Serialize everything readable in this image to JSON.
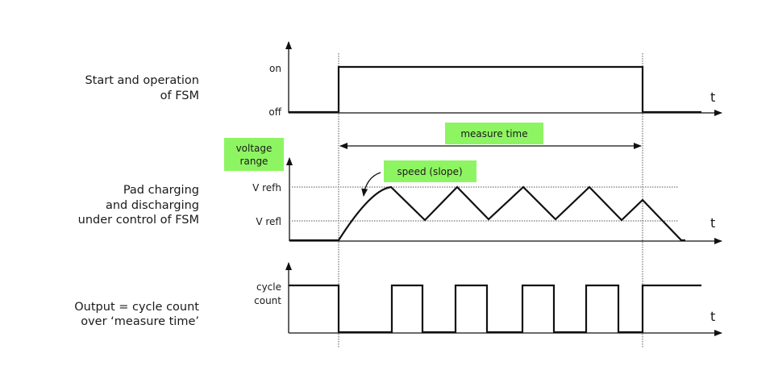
{
  "rows": [
    {
      "label_lines": [
        "Start and operation",
        "of FSM"
      ],
      "y_labels": [
        "on",
        "off"
      ],
      "axis_label": "t"
    },
    {
      "label_lines": [
        "Pad charging",
        "and discharging",
        "under control of FSM"
      ],
      "y_labels": [
        "V refh",
        "V refl"
      ],
      "axis_label": "t"
    },
    {
      "label_lines": [
        "Output = cycle count",
        "over ‘measure time’"
      ],
      "y_labels": [
        "cycle",
        "count"
      ],
      "axis_label": "t"
    }
  ],
  "callouts": {
    "measure_time": "measure time",
    "voltage_range": [
      "voltage",
      "range"
    ],
    "speed": "speed (slope)"
  },
  "colors": {
    "callout_fill": "#8ef562",
    "signal": "#111111"
  }
}
